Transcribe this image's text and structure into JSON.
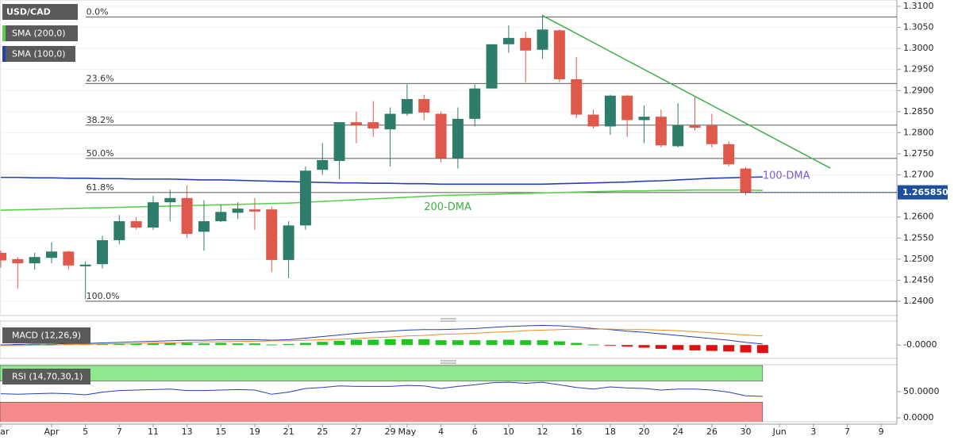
{
  "chart_data": {
    "type": "candlestick",
    "title": "USD/CAD",
    "categories": [
      "Mar",
      null,
      null,
      "Apr",
      null,
      "5",
      null,
      "7",
      null,
      "11",
      null,
      "13",
      null,
      "15",
      null,
      "19",
      null,
      "21",
      null,
      "25",
      null,
      "27",
      null,
      "29",
      "May",
      null,
      "4",
      null,
      "6",
      null,
      "10",
      null,
      "12",
      null,
      "16",
      null,
      "18",
      null,
      "20",
      null,
      "24",
      null,
      "26",
      null,
      "30",
      null,
      "Jun",
      null,
      "3",
      null,
      "7",
      null,
      "9"
    ],
    "open": [
      1.2515,
      1.25,
      1.249,
      1.2503,
      1.2518,
      1.2483,
      1.2488,
      1.2545,
      1.259,
      1.2575,
      1.2635,
      1.2645,
      1.2565,
      1.259,
      1.261,
      1.2618,
      1.2618,
      1.2498,
      1.258,
      1.2712,
      1.2733,
      1.2825,
      1.2825,
      1.2808,
      1.2845,
      1.288,
      1.2845,
      1.274,
      1.2833,
      1.2905,
      1.301,
      1.3025,
      1.2997,
      1.3043,
      1.2927,
      1.2843,
      1.2815,
      1.2888,
      1.283,
      1.2838,
      1.2768,
      1.2818,
      1.2818,
      1.2773,
      1.2715,
      null,
      null,
      null,
      null,
      null,
      null,
      null,
      null
    ],
    "high": [
      1.252,
      1.2505,
      1.2515,
      1.254,
      1.252,
      1.2495,
      1.2555,
      1.2605,
      1.26,
      1.265,
      1.2665,
      1.2675,
      1.264,
      1.263,
      1.2635,
      1.2645,
      1.2625,
      1.259,
      1.272,
      1.2775,
      1.2825,
      1.285,
      1.2875,
      1.286,
      1.2915,
      1.289,
      1.285,
      1.286,
      1.2915,
      1.301,
      1.3055,
      1.304,
      1.308,
      1.3045,
      1.298,
      1.2855,
      1.289,
      1.289,
      1.2865,
      1.2855,
      1.287,
      1.2885,
      1.2845,
      1.278,
      1.2718,
      null,
      null,
      null,
      null,
      null,
      null,
      null,
      null
    ],
    "low": [
      1.248,
      1.243,
      1.2475,
      1.249,
      1.2475,
      1.2405,
      1.2478,
      1.2535,
      1.257,
      1.257,
      1.259,
      1.255,
      1.252,
      1.2588,
      1.2595,
      1.257,
      1.247,
      1.2455,
      1.257,
      1.27,
      1.269,
      1.2775,
      1.279,
      1.272,
      1.284,
      1.283,
      1.273,
      1.2715,
      1.2815,
      1.2905,
      1.299,
      1.292,
      1.2975,
      1.292,
      1.2835,
      1.281,
      1.2795,
      1.279,
      1.2775,
      1.2765,
      1.2765,
      1.2805,
      1.2765,
      1.272,
      1.2652,
      null,
      null,
      null,
      null,
      null,
      null,
      null,
      null
    ],
    "close": [
      1.2497,
      1.249,
      1.2505,
      1.2518,
      1.2485,
      1.2487,
      1.2545,
      1.259,
      1.2575,
      1.2635,
      1.2645,
      1.256,
      1.259,
      1.2612,
      1.262,
      1.2613,
      1.2498,
      1.258,
      1.271,
      1.2735,
      1.2825,
      1.2818,
      1.281,
      1.2845,
      1.288,
      1.2848,
      1.274,
      1.2833,
      1.2905,
      1.301,
      1.3025,
      1.2995,
      1.3045,
      1.2927,
      1.2843,
      1.2815,
      1.2888,
      1.283,
      1.2838,
      1.277,
      1.2818,
      1.2812,
      1.2773,
      1.2725,
      1.26585,
      null,
      null,
      null,
      null,
      null,
      null,
      null,
      null
    ],
    "up_color": "#2e7d6b",
    "down_color": "#e0584b",
    "ylim": [
      1.24,
      1.31
    ],
    "yticks": [
      {
        "value": 1.31,
        "label": "1.3100"
      },
      {
        "value": 1.305,
        "label": "1.3050"
      },
      {
        "value": 1.3,
        "label": "1.3000"
      },
      {
        "value": 1.295,
        "label": "1.2950"
      },
      {
        "value": 1.29,
        "label": "1.2900"
      },
      {
        "value": 1.285,
        "label": "1.2850"
      },
      {
        "value": 1.28,
        "label": "1.2800"
      },
      {
        "value": 1.275,
        "label": "1.2750"
      },
      {
        "value": 1.27,
        "label": "1.2700"
      },
      {
        "value": 1.26,
        "label": "1.2600"
      },
      {
        "value": 1.255,
        "label": "1.2550"
      },
      {
        "value": 1.25,
        "label": "1.2500"
      },
      {
        "value": 1.245,
        "label": "1.2450"
      },
      {
        "value": 1.24,
        "label": "1.2400"
      }
    ],
    "last_price": {
      "value": 1.26585,
      "label": "1.265850",
      "color": "#1e4f9c"
    },
    "series": [
      {
        "name": "SMA (200,0)",
        "color": "#5ccf4f",
        "values": [
          1.2616,
          1.2617,
          1.2618,
          1.2619,
          1.262,
          1.2621,
          1.2622,
          1.2623,
          1.2624,
          1.2625,
          1.2626,
          1.2627,
          1.2628,
          1.2629,
          1.263,
          1.2631,
          1.2632,
          1.2633,
          1.2635,
          1.2637,
          1.2639,
          1.2641,
          1.2643,
          1.2645,
          1.2647,
          1.2649,
          1.2651,
          1.2652,
          1.2653,
          1.2654,
          1.2655,
          1.2656,
          1.2657,
          1.2658,
          1.2659,
          1.266,
          1.2661,
          1.2662,
          1.2662,
          1.2663,
          1.2663,
          1.2664,
          1.2664,
          1.2664,
          1.2664,
          1.2663,
          null,
          null,
          null,
          null,
          null,
          null,
          null
        ]
      },
      {
        "name": "SMA (100,0)",
        "color": "#2440b3",
        "values": [
          1.2694,
          1.2694,
          1.2693,
          1.2693,
          1.2692,
          1.2692,
          1.2691,
          1.2691,
          1.269,
          1.269,
          1.269,
          1.2689,
          1.2688,
          1.2688,
          1.2687,
          1.2686,
          1.2685,
          1.2684,
          1.2683,
          1.2682,
          1.2681,
          1.2681,
          1.268,
          1.268,
          1.2679,
          1.2679,
          1.2678,
          1.2678,
          1.2678,
          1.2678,
          1.2678,
          1.2678,
          1.2678,
          1.2679,
          1.268,
          1.2681,
          1.2682,
          1.2683,
          1.2685,
          1.2686,
          1.2688,
          1.269,
          1.2692,
          1.2693,
          1.2694,
          1.2695,
          null,
          null,
          null,
          null,
          null,
          null,
          null
        ]
      }
    ],
    "annotations": [
      {
        "text": "100-DMA",
        "color": "#7b5cd6"
      },
      {
        "text": "200-DMA",
        "color": "#3cb043"
      }
    ],
    "fib_levels": [
      {
        "label": "0.0%",
        "value": 1.3075
      },
      {
        "label": "23.6%",
        "value": 1.2917
      },
      {
        "label": "38.2%",
        "value": 1.2818
      },
      {
        "label": "50.0%",
        "value": 1.2739
      },
      {
        "label": "61.8%",
        "value": 1.2658
      },
      {
        "label": "100.0%",
        "value": 1.24
      }
    ],
    "trendline": {
      "color": "#3cb043",
      "x": [
        32,
        49
      ],
      "y": [
        1.3078,
        1.2716
      ]
    },
    "macd": {
      "title": "MACD (12,26,9)",
      "ylim": [
        -0.0025,
        0.0045
      ],
      "yticks": [
        {
          "value": 0,
          "label": "-0.0000"
        }
      ],
      "macd_line": {
        "color": "#2440b3",
        "values": [
          0.0,
          0.0001,
          0.0002,
          0.0002,
          0.0003,
          0.0003,
          0.0004,
          0.0005,
          0.0006,
          0.0007,
          0.0008,
          0.0009,
          0.0009,
          0.001,
          0.001,
          0.001,
          0.0009,
          0.001,
          0.0013,
          0.0016,
          0.0019,
          0.0022,
          0.0024,
          0.0026,
          0.0028,
          0.0029,
          0.0029,
          0.003,
          0.0031,
          0.0033,
          0.0035,
          0.0036,
          0.0037,
          0.0036,
          0.0034,
          0.0031,
          0.0029,
          0.0026,
          0.0024,
          0.0021,
          0.0018,
          0.0015,
          0.0012,
          0.0009,
          0.0005,
          0.0002,
          null,
          null,
          null,
          null,
          null,
          null,
          null
        ]
      },
      "signal_line": {
        "color": "#f08a24",
        "values": [
          -0.0001,
          -0.0001,
          0.0,
          0.0,
          0.0001,
          0.0001,
          0.0002,
          0.0002,
          0.0003,
          0.0004,
          0.0004,
          0.0005,
          0.0006,
          0.0006,
          0.0007,
          0.0007,
          0.0008,
          0.0008,
          0.0009,
          0.001,
          0.0011,
          0.0012,
          0.0014,
          0.0015,
          0.0017,
          0.0018,
          0.002,
          0.0021,
          0.0022,
          0.0024,
          0.0025,
          0.0027,
          0.0028,
          0.0029,
          0.003,
          0.003,
          0.003,
          0.0029,
          0.0029,
          0.0028,
          0.0027,
          0.0025,
          0.0023,
          0.0021,
          0.0019,
          0.0017,
          null,
          null,
          null,
          null,
          null,
          null,
          null
        ]
      },
      "histogram": [
        0.0001,
        0.0002,
        0.0002,
        0.0002,
        0.0002,
        0.0002,
        0.0002,
        0.0003,
        0.0003,
        0.0003,
        0.0004,
        0.0004,
        0.0003,
        0.0004,
        0.0003,
        0.0003,
        0.0001,
        0.0002,
        0.0004,
        0.0006,
        0.0008,
        0.001,
        0.001,
        0.0011,
        0.0011,
        0.0011,
        0.0009,
        0.0009,
        0.0009,
        0.0009,
        0.001,
        0.0009,
        0.0009,
        0.0007,
        0.0004,
        0.0001,
        -0.0001,
        -0.0003,
        -0.0005,
        -0.0007,
        -0.0009,
        -0.001,
        -0.0011,
        -0.0012,
        -0.0014,
        -0.0015,
        null,
        null,
        null,
        null,
        null,
        null,
        null
      ],
      "up_color": "#22c322",
      "down_color": "#e01010"
    },
    "rsi": {
      "title": "RSI (14,70,30,1)",
      "ylim": [
        0,
        100
      ],
      "yticks": [
        {
          "value": 50,
          "label": "50.0000"
        },
        {
          "value": 0,
          "label": "0.0000"
        }
      ],
      "overbought": 70,
      "oversold": 30,
      "overbought_color": "#8ee88e",
      "oversold_color": "#f58a8a",
      "color": "#2440b3",
      "values": [
        46,
        45,
        46,
        47,
        46,
        44,
        49,
        52,
        53,
        54,
        55,
        52,
        52,
        53,
        54,
        53,
        45,
        49,
        56,
        58,
        61,
        60,
        60,
        60,
        62,
        61,
        56,
        60,
        63,
        67,
        68,
        66,
        68,
        63,
        58,
        55,
        59,
        57,
        56,
        53,
        55,
        55,
        53,
        49,
        42,
        41,
        null,
        null,
        null,
        null,
        null,
        null,
        null
      ]
    }
  }
}
